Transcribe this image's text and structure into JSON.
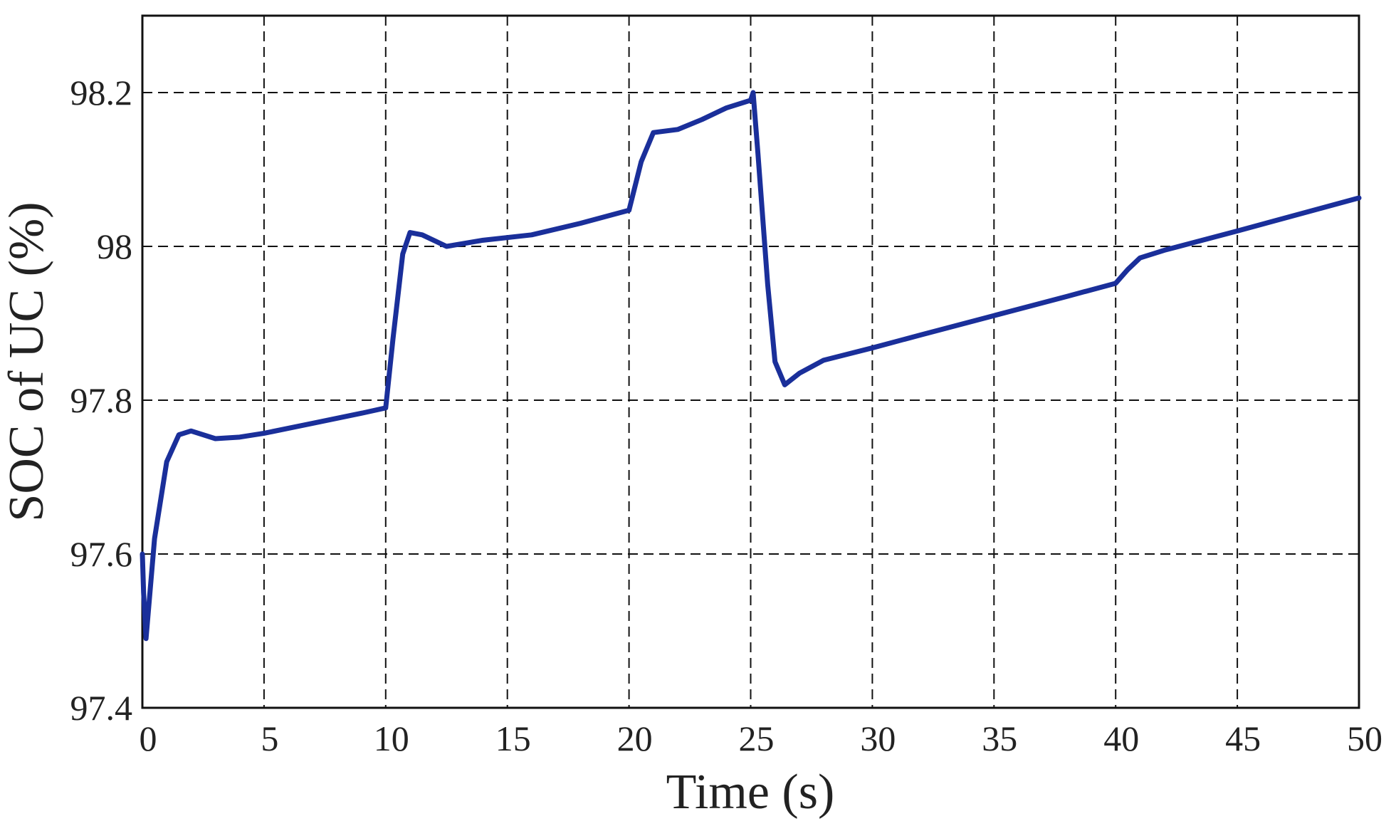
{
  "chart_data": {
    "type": "line",
    "xlabel": "Time (s)",
    "ylabel": "SOC of UC (%)",
    "xlim": [
      0,
      50
    ],
    "ylim": [
      97.4,
      98.3
    ],
    "xticks": [
      0,
      5,
      10,
      15,
      20,
      25,
      30,
      35,
      40,
      45,
      50
    ],
    "yticks": [
      97.4,
      97.6,
      97.8,
      98,
      98.2
    ],
    "grid": true,
    "x": [
      0,
      0.05,
      0.15,
      0.5,
      1,
      1.5,
      2,
      3,
      4,
      5,
      7,
      9,
      10,
      10.3,
      10.7,
      11,
      11.5,
      12.5,
      14,
      16,
      18,
      20,
      20.5,
      21,
      22,
      23,
      24,
      25,
      25.1,
      25.3,
      25.7,
      26,
      26.4,
      27,
      28,
      30,
      32,
      35,
      38,
      40,
      40.5,
      41,
      42,
      45,
      50
    ],
    "series": [
      {
        "name": "SOC",
        "color": "#1a2f9a",
        "values": [
          97.6,
          97.55,
          97.49,
          97.62,
          97.72,
          97.755,
          97.76,
          97.75,
          97.752,
          97.757,
          97.77,
          97.783,
          97.79,
          97.88,
          97.99,
          98.018,
          98.015,
          98.0,
          98.008,
          98.015,
          98.03,
          98.047,
          98.11,
          98.148,
          98.152,
          98.165,
          98.18,
          98.19,
          98.2,
          98.12,
          97.95,
          97.85,
          97.82,
          97.835,
          97.852,
          97.868,
          97.885,
          97.91,
          97.935,
          97.952,
          97.97,
          97.985,
          97.995,
          98.02,
          98.063
        ]
      }
    ]
  }
}
